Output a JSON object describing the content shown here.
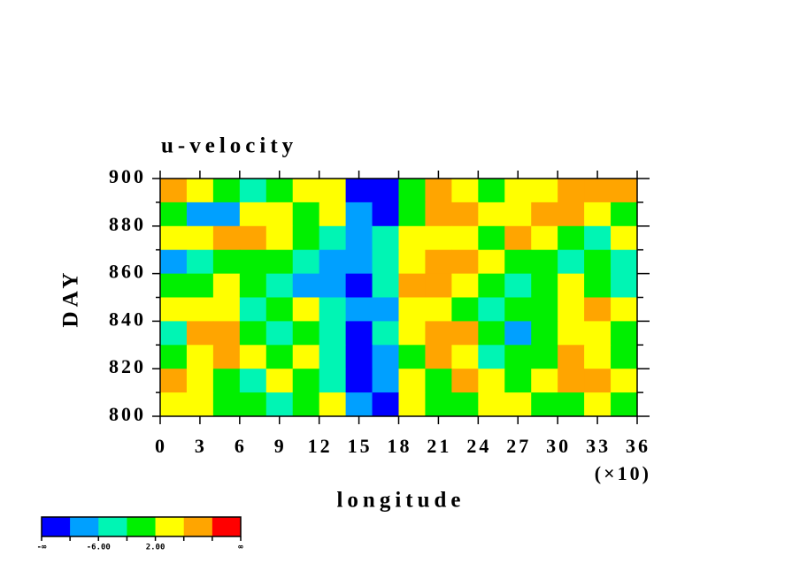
{
  "chart_data": {
    "type": "contour",
    "title": "u-velocity",
    "x_label": "longitude",
    "x_multiplier_label": "(×10)",
    "y_label": "DAY",
    "xlim": [
      0,
      36
    ],
    "xticks": [
      0,
      3,
      6,
      9,
      12,
      15,
      18,
      21,
      24,
      27,
      30,
      33,
      36
    ],
    "ylim": [
      800,
      900
    ],
    "yticks": [
      800,
      820,
      840,
      860,
      880,
      900
    ],
    "yminorticks": [
      810,
      830,
      850,
      870,
      890
    ],
    "levels": [
      -10,
      -6,
      -2,
      2,
      6,
      10
    ],
    "colors": [
      "#0000ff",
      "#00a0ff",
      "#00f5b4",
      "#00f000",
      "#ffff00",
      "#ffa500",
      "#ff0000"
    ],
    "colorbar_labels": [
      {
        "boundary": 0,
        "label": "-∞"
      },
      {
        "boundary": 2,
        "label": "-6.00"
      },
      {
        "boundary": 4,
        "label": "2.00"
      },
      {
        "boundary": 7,
        "label": "∞"
      }
    ],
    "field": {
      "x": [
        1,
        3,
        5,
        7,
        9,
        11,
        13,
        15,
        17,
        19,
        21,
        23,
        25,
        27,
        29,
        31,
        33,
        35
      ],
      "y": [
        895,
        885,
        875,
        865,
        855,
        845,
        835,
        825,
        815,
        805
      ],
      "values": [
        [
          8,
          4,
          -2,
          -4,
          0,
          2,
          3,
          -12,
          -12,
          1,
          6,
          3,
          1,
          2,
          4,
          8,
          7,
          9
        ],
        [
          0,
          -8,
          -9,
          2,
          4,
          -1,
          3,
          -8,
          -11,
          1,
          8,
          9,
          2,
          3,
          9,
          6,
          4,
          -2
        ],
        [
          3,
          5,
          8,
          7,
          2,
          0,
          -4,
          -10,
          -6,
          3,
          4,
          2,
          0,
          8,
          3,
          1,
          -3,
          2
        ],
        [
          -7,
          -3,
          -1,
          1,
          -2,
          -4,
          -9,
          -10,
          -4,
          5,
          9,
          8,
          3,
          1,
          -2,
          -5,
          -1,
          -3
        ],
        [
          1,
          -1,
          3,
          0,
          -4,
          -7,
          -10,
          -12,
          -6,
          8,
          9,
          4,
          -1,
          -3,
          0,
          2,
          -2,
          -4
        ],
        [
          3,
          4,
          2,
          -3,
          -1,
          2,
          -5,
          -10,
          -8,
          2,
          5,
          0,
          -3,
          -1,
          1,
          4,
          8,
          3
        ],
        [
          -4,
          9,
          6,
          -1,
          -3,
          1,
          -4,
          -11,
          -4,
          4,
          9,
          7,
          -2,
          -8,
          1,
          3,
          2,
          -1
        ],
        [
          1,
          3,
          8,
          2,
          1,
          4,
          -5,
          -12,
          -10,
          -1,
          9,
          3,
          -4,
          0,
          -2,
          6,
          5,
          1
        ],
        [
          7,
          2,
          0,
          -3,
          2,
          0,
          -3,
          -11,
          -9,
          3,
          1,
          6,
          3,
          -2,
          4,
          9,
          8,
          3
        ],
        [
          2,
          4,
          1,
          0,
          -3,
          -1,
          3,
          -9,
          -12,
          5,
          0,
          -1,
          4,
          2,
          0,
          -1,
          3,
          1
        ]
      ]
    }
  }
}
